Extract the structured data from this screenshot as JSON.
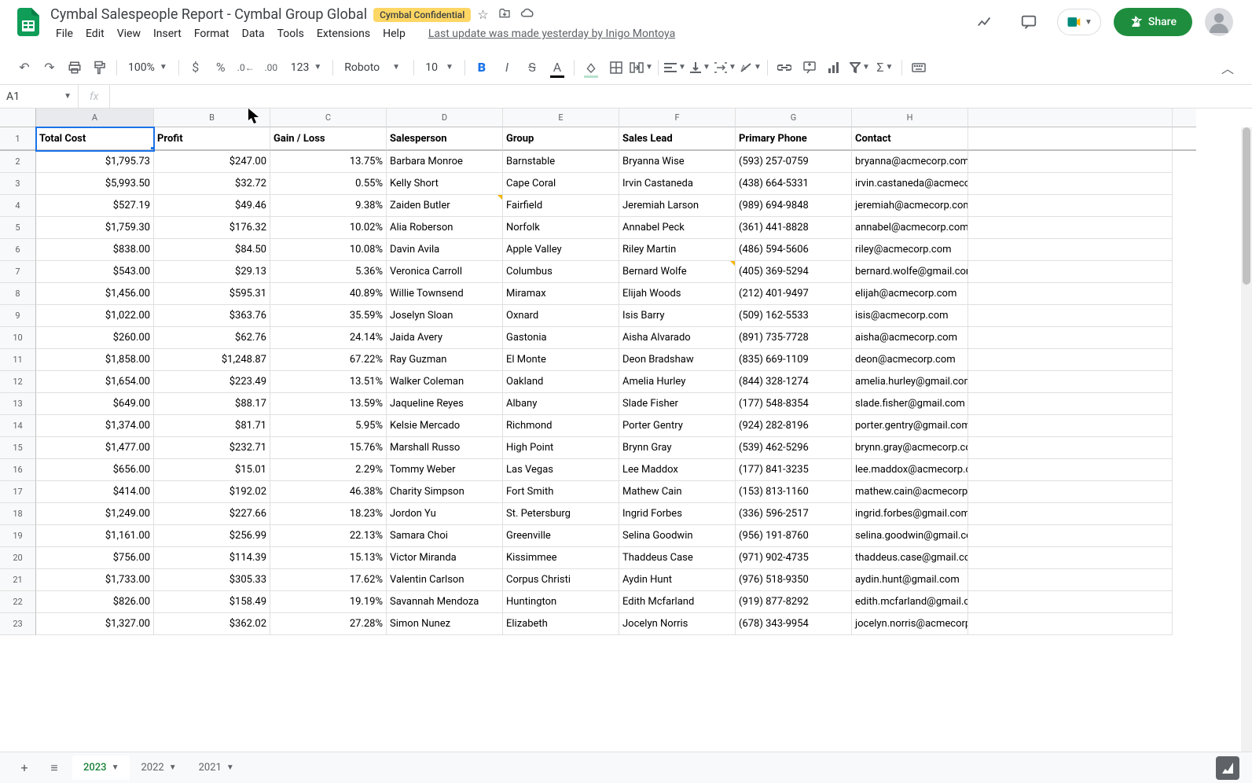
{
  "doc": {
    "title": "Cymbal Salespeople Report - Cymbal Group Global",
    "badge": "Cymbal Confidential",
    "last_update": "Last update was made yesterday by Inigo Montoya"
  },
  "menus": [
    "File",
    "Edit",
    "View",
    "Insert",
    "Format",
    "Data",
    "Tools",
    "Extensions",
    "Help"
  ],
  "share_label": "Share",
  "toolbar": {
    "zoom": "100%",
    "font": "Roboto",
    "font_size": "10",
    "number_format": "123"
  },
  "name_box": "A1",
  "columns": [
    "A",
    "B",
    "C",
    "D",
    "E",
    "F",
    "G",
    "H"
  ],
  "headers": [
    "Total Cost",
    "Profit",
    "Gain / Loss",
    "Salesperson",
    "Group",
    "Sales Lead",
    "Primary Phone",
    "Contact"
  ],
  "rows": [
    [
      "$1,795.73",
      "$247.00",
      "13.75%",
      "Barbara Monroe",
      "Barnstable",
      "Bryanna Wise",
      "(593) 257-0759",
      "bryanna@acmecorp.com"
    ],
    [
      "$5,993.50",
      "$32.72",
      "0.55%",
      "Kelly Short",
      "Cape Coral",
      "Irvin Castaneda",
      "(438) 664-5331",
      "irvin.castaneda@acmecorp.com"
    ],
    [
      "$527.19",
      "$49.46",
      "9.38%",
      "Zaiden Butler",
      "Fairfield",
      "Jeremiah Larson",
      "(989) 694-9848",
      "jeremiah@acmecorp.com"
    ],
    [
      "$1,759.30",
      "$176.32",
      "10.02%",
      "Alia Roberson",
      "Norfolk",
      "Annabel Peck",
      "(361) 441-8828",
      "annabel@acmecorp.com"
    ],
    [
      "$838.00",
      "$84.50",
      "10.08%",
      "Davin Avila",
      "Apple Valley",
      "Riley Martin",
      "(486) 594-5606",
      "riley@acmecorp.com"
    ],
    [
      "$543.00",
      "$29.13",
      "5.36%",
      "Veronica Carroll",
      "Columbus",
      "Bernard Wolfe",
      "(405) 369-5294",
      "bernard.wolfe@gmail.com"
    ],
    [
      "$1,456.00",
      "$595.31",
      "40.89%",
      "Willie Townsend",
      "Miramax",
      "Elijah Woods",
      "(212) 401-9497",
      "elijah@acmecorp.com"
    ],
    [
      "$1,022.00",
      "$363.76",
      "35.59%",
      "Joselyn Sloan",
      "Oxnard",
      "Isis Barry",
      "(509) 162-5533",
      "isis@acmecorp.com"
    ],
    [
      "$260.00",
      "$62.76",
      "24.14%",
      "Jaida Avery",
      "Gastonia",
      "Aisha Alvarado",
      "(891) 735-7728",
      "aisha@acmecorp.com"
    ],
    [
      "$1,858.00",
      "$1,248.87",
      "67.22%",
      "Ray Guzman",
      "El Monte",
      "Deon Bradshaw",
      "(835) 669-1109",
      "deon@acmecorp.com"
    ],
    [
      "$1,654.00",
      "$223.49",
      "13.51%",
      "Walker Coleman",
      "Oakland",
      "Amelia Hurley",
      "(844) 328-1274",
      "amelia.hurley@gmail.com"
    ],
    [
      "$649.00",
      "$88.17",
      "13.59%",
      "Jaqueline Reyes",
      "Albany",
      "Slade Fisher",
      "(177) 548-8354",
      "slade.fisher@gmail.com"
    ],
    [
      "$1,374.00",
      "$81.71",
      "5.95%",
      "Kelsie Mercado",
      "Richmond",
      "Porter Gentry",
      "(924) 282-8196",
      "porter.gentry@gmail.com"
    ],
    [
      "$1,477.00",
      "$232.71",
      "15.76%",
      "Marshall Russo",
      "High Point",
      "Brynn Gray",
      "(539) 462-5296",
      "brynn.gray@acmecorp.com"
    ],
    [
      "$656.00",
      "$15.01",
      "2.29%",
      "Tommy Weber",
      "Las Vegas",
      "Lee Maddox",
      "(177) 841-3235",
      "lee.maddox@acmecorp.com"
    ],
    [
      "$414.00",
      "$192.02",
      "46.38%",
      "Charity Simpson",
      "Fort Smith",
      "Mathew Cain",
      "(153) 813-1160",
      "mathew.cain@acmecorp.com"
    ],
    [
      "$1,249.00",
      "$227.66",
      "18.23%",
      "Jordon Yu",
      "St. Petersburg",
      "Ingrid Forbes",
      "(336) 596-2517",
      "ingrid.forbes@gmail.com"
    ],
    [
      "$1,161.00",
      "$256.99",
      "22.13%",
      "Samara Choi",
      "Greenville",
      "Selina Goodwin",
      "(956) 191-8760",
      "selina.goodwin@gmail.com"
    ],
    [
      "$756.00",
      "$114.39",
      "15.13%",
      "Victor Miranda",
      "Kissimmee",
      "Thaddeus Case",
      "(971) 902-4735",
      "thaddeus.case@gmail.com"
    ],
    [
      "$1,733.00",
      "$305.33",
      "17.62%",
      "Valentin Carlson",
      "Corpus Christi",
      "Aydin Hunt",
      "(976) 518-9350",
      "aydin.hunt@gmail.com"
    ],
    [
      "$826.00",
      "$158.49",
      "19.19%",
      "Savannah Mendoza",
      "Huntington",
      "Edith Mcfarland",
      "(919) 877-8292",
      "edith.mcfarland@gmail.com"
    ],
    [
      "$1,327.00",
      "$362.02",
      "27.28%",
      "Simon Nunez",
      "Elizabeth",
      "Jocelyn Norris",
      "(678) 343-9954",
      "jocelyn.norris@acmecorp.com"
    ]
  ],
  "note_cells": [
    [
      2,
      3
    ],
    [
      5,
      5
    ]
  ],
  "sheets": [
    {
      "label": "2023",
      "active": true
    },
    {
      "label": "2022",
      "active": false
    },
    {
      "label": "2021",
      "active": false
    }
  ],
  "styling": {
    "selected_cell": "A1",
    "accent": "#1a73e8",
    "share_bg": "#1e8e3e",
    "badge_bg": "#fdd663",
    "grid_border": "#e0e0e0",
    "header_bg": "#f8f9fa",
    "active_tab_color": "#188038"
  }
}
